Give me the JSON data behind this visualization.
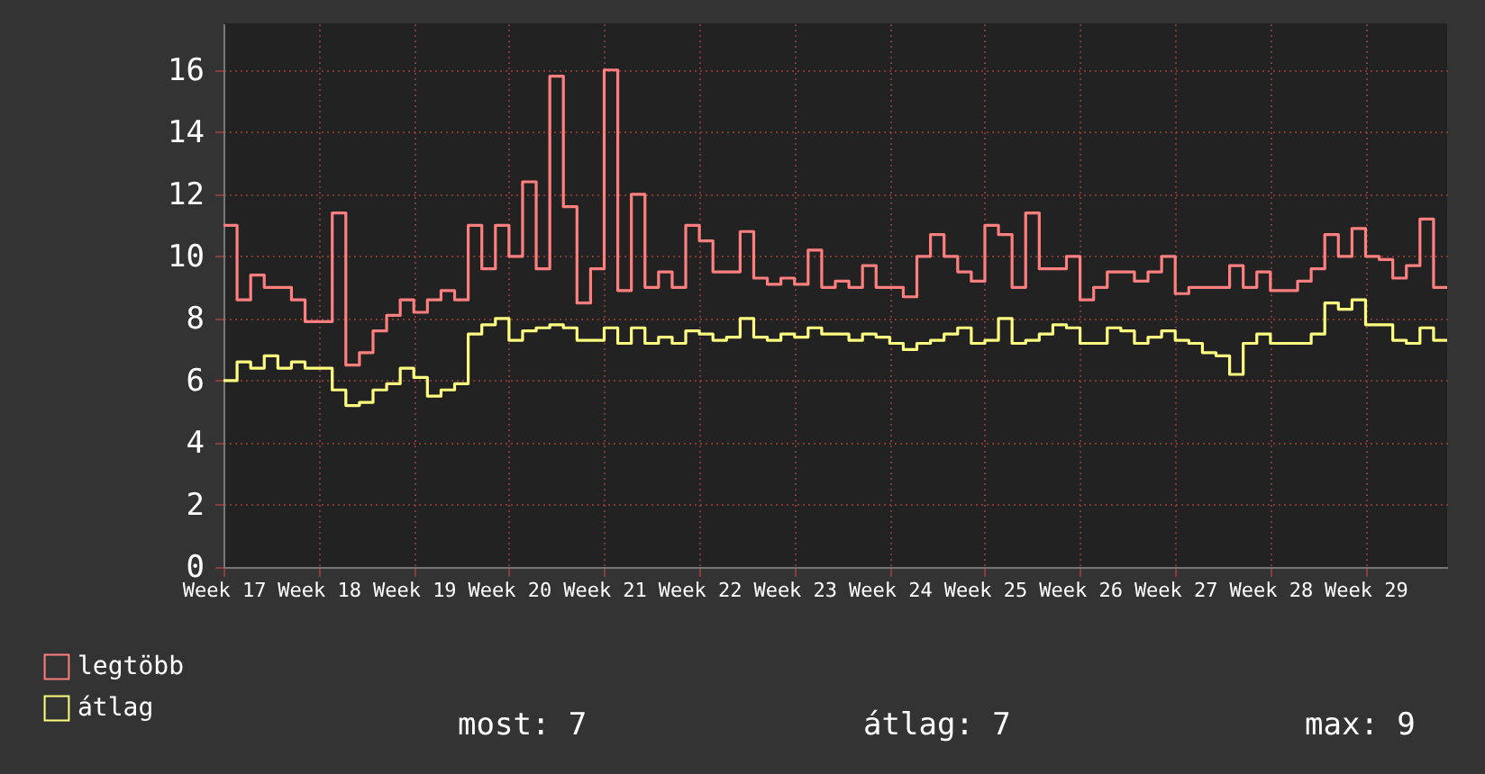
{
  "chart_data": {
    "type": "step",
    "categories": [
      "Week 17",
      null,
      null,
      null,
      null,
      null,
      null,
      "Week 18",
      null,
      null,
      null,
      null,
      null,
      null,
      "Week 19",
      null,
      null,
      null,
      null,
      null,
      null,
      "Week 20",
      null,
      null,
      null,
      null,
      null,
      null,
      "Week 21",
      null,
      null,
      null,
      null,
      null,
      null,
      "Week 22",
      null,
      null,
      null,
      null,
      null,
      null,
      "Week 23",
      null,
      null,
      null,
      null,
      null,
      null,
      "Week 24",
      null,
      null,
      null,
      null,
      null,
      null,
      "Week 25",
      null,
      null,
      null,
      null,
      null,
      null,
      "Week 26",
      null,
      null,
      null,
      null,
      null,
      null,
      "Week 27",
      null,
      null,
      null,
      null,
      null,
      null,
      "Week 28",
      null,
      null,
      null,
      null,
      null,
      null,
      "Week 29",
      null,
      null,
      null,
      null,
      null,
      null
    ],
    "series": [
      {
        "name": "legtöbb",
        "color": "#ff7f7f",
        "values": [
          11.0,
          8.6,
          9.4,
          9.0,
          9.0,
          8.6,
          7.9,
          7.9,
          11.4,
          6.5,
          6.9,
          7.6,
          8.1,
          8.6,
          8.2,
          8.6,
          8.9,
          8.6,
          11.0,
          9.6,
          11.0,
          10.0,
          12.4,
          9.6,
          15.8,
          11.6,
          8.5,
          9.6,
          16.0,
          8.9,
          12.0,
          9.0,
          9.5,
          9.0,
          11.0,
          10.5,
          9.5,
          9.5,
          10.8,
          9.3,
          9.1,
          9.3,
          9.1,
          10.2,
          9.0,
          9.2,
          9.0,
          9.7,
          9.0,
          9.0,
          8.7,
          10.0,
          10.7,
          10.0,
          9.5,
          9.2,
          11.0,
          10.7,
          9.0,
          11.4,
          9.6,
          9.6,
          10.0,
          8.6,
          9.0,
          9.5,
          9.5,
          9.2,
          9.5,
          10.0,
          8.8,
          9.0,
          9.0,
          9.0,
          9.7,
          9.0,
          9.5,
          8.9,
          8.9,
          9.2,
          9.6,
          10.7,
          10.0,
          10.9,
          10.0,
          9.9,
          9.3,
          9.7,
          11.2,
          9.0,
          9.0
        ]
      },
      {
        "name": "átlag",
        "color": "#ffff80",
        "values": [
          6.0,
          6.6,
          6.4,
          6.8,
          6.4,
          6.6,
          6.4,
          6.4,
          5.7,
          5.2,
          5.3,
          5.7,
          5.9,
          6.4,
          6.1,
          5.5,
          5.7,
          5.9,
          7.5,
          7.8,
          8.0,
          7.3,
          7.6,
          7.7,
          7.8,
          7.7,
          7.3,
          7.3,
          7.7,
          7.2,
          7.7,
          7.2,
          7.4,
          7.2,
          7.6,
          7.5,
          7.3,
          7.4,
          8.0,
          7.4,
          7.3,
          7.5,
          7.4,
          7.7,
          7.5,
          7.5,
          7.3,
          7.5,
          7.4,
          7.2,
          7.0,
          7.2,
          7.3,
          7.5,
          7.7,
          7.2,
          7.3,
          8.0,
          7.2,
          7.3,
          7.5,
          7.8,
          7.7,
          7.2,
          7.2,
          7.7,
          7.6,
          7.2,
          7.4,
          7.6,
          7.3,
          7.2,
          6.9,
          6.8,
          6.2,
          7.2,
          7.5,
          7.2,
          7.2,
          7.2,
          7.5,
          8.5,
          8.3,
          8.6,
          7.8,
          7.8,
          7.3,
          7.2,
          7.7,
          7.3,
          7.3
        ]
      }
    ],
    "ylim": [
      0,
      17.5
    ],
    "yticks": [
      0,
      2,
      4,
      6,
      8,
      10,
      12,
      14,
      16
    ],
    "grid": true,
    "legend": "bottom left",
    "annotations": [
      "most: 7",
      "átlag: 7",
      "max: 9"
    ]
  }
}
